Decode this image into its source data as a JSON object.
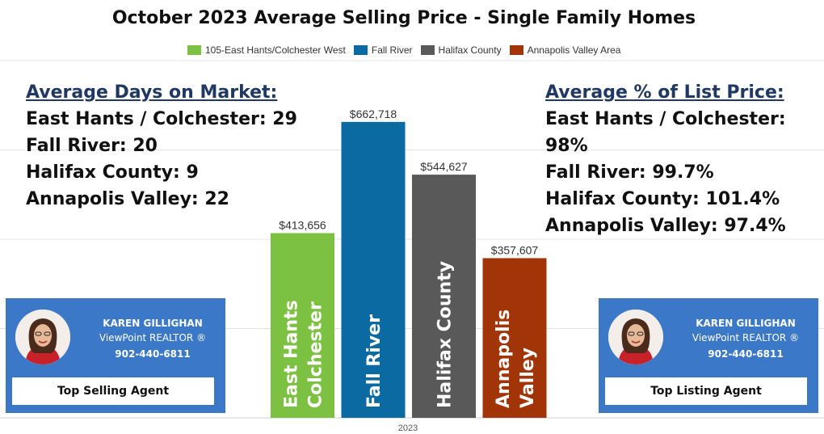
{
  "chart_data": {
    "type": "bar",
    "title": "October 2023 Average Selling Price - Single Family Homes",
    "categories": [
      "2023"
    ],
    "series": [
      {
        "name": "105-East Hants/Colchester West",
        "value": 413656,
        "value_label": "$413,656",
        "bar_label": [
          "East Hants",
          "Colchester"
        ],
        "color": "#7dc142"
      },
      {
        "name": "Fall River",
        "value": 662718,
        "value_label": "$662,718",
        "bar_label": [
          "Fall River"
        ],
        "color": "#0a6aa1"
      },
      {
        "name": "Halifax County",
        "value": 544627,
        "value_label": "$544,627",
        "bar_label": [
          "Halifax County"
        ],
        "color": "#595959"
      },
      {
        "name": "Annapolis Valley Area",
        "value": 357607,
        "value_label": "$357,607",
        "bar_label": [
          "Annapolis",
          "Valley"
        ],
        "color": "#a13508"
      }
    ],
    "ylim": [
      0,
      800000
    ],
    "grid": true,
    "legend": "top"
  },
  "stats_left": {
    "heading": "Average Days on Market:",
    "lines": [
      "East Hants / Colchester: 29",
      "Fall River: 20",
      "Halifax County: 9",
      "Annapolis Valley: 22"
    ]
  },
  "stats_right": {
    "heading": "Average % of List Price:",
    "lines": [
      "East Hants / Colchester: 98%",
      "Fall River: 99.7%",
      "Halifax County: 101.4%",
      "Annapolis Valley: 97.4%"
    ]
  },
  "agent_left": {
    "name": "KAREN GILLIGHAN",
    "title": "ViewPoint REALTOR ®",
    "phone": "902-440-6811",
    "badge": "Top Selling Agent"
  },
  "agent_right": {
    "name": "KAREN GILLIGHAN",
    "title": "ViewPoint REALTOR ®",
    "phone": "902-440-6811",
    "badge": "Top Listing Agent"
  },
  "colors": {
    "card_bg": "#3c78c8",
    "heading_text": "#1f3864"
  }
}
